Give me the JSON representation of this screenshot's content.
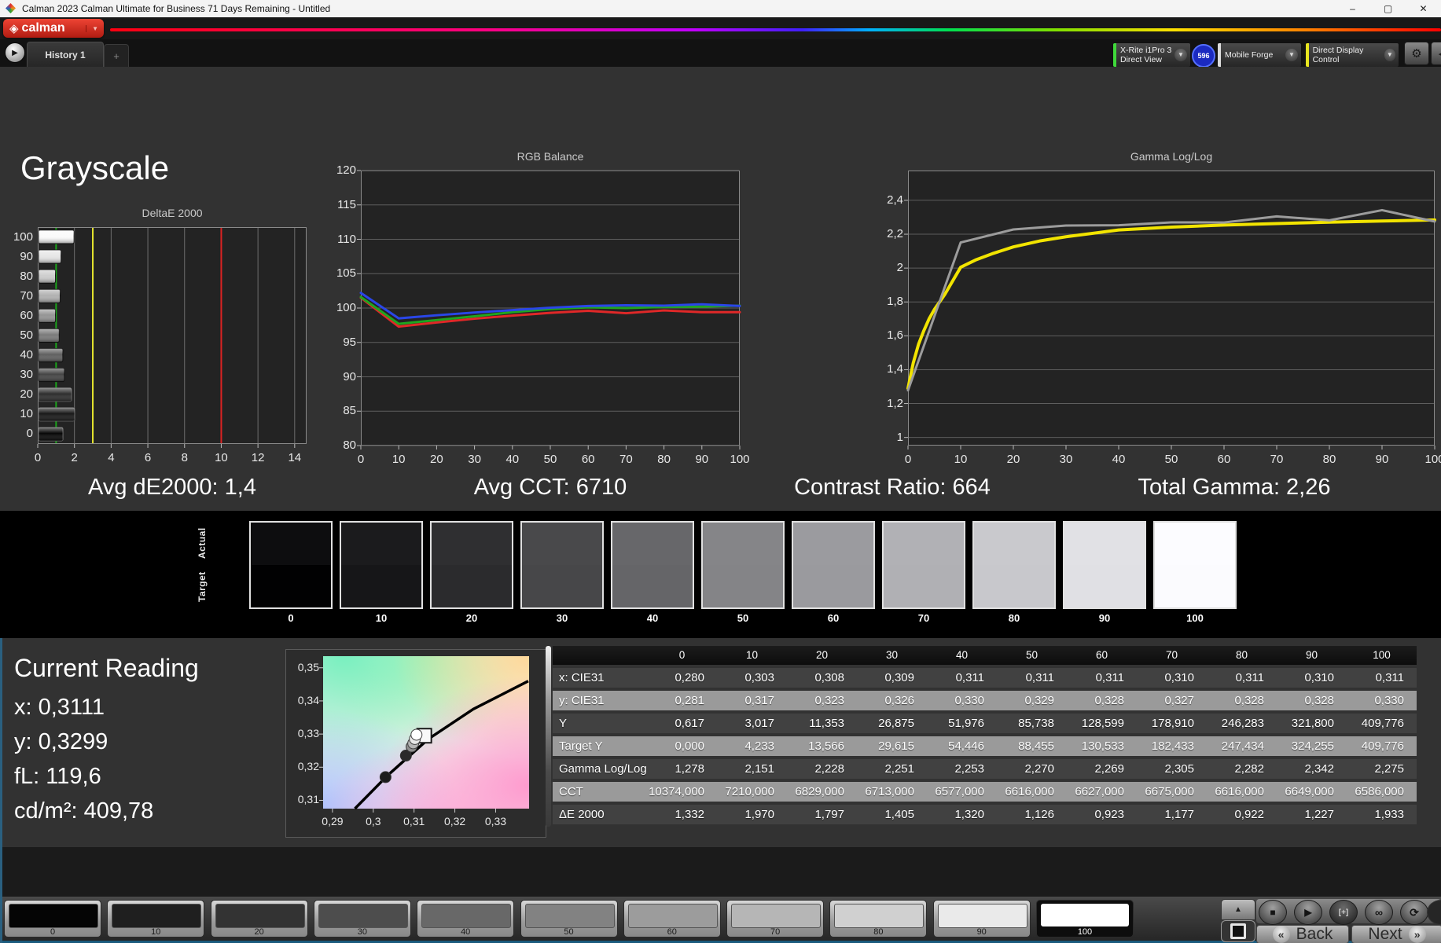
{
  "window": {
    "title": "Calman 2023 Calman Ultimate for Business 71 Days Remaining  - Untitled",
    "minimize": "–",
    "maximize": "▢",
    "close": "✕"
  },
  "brand": {
    "name": "calman",
    "dropdown_icon": "▼"
  },
  "tab_bar": {
    "scroll_icon": "▶",
    "tabs": [
      {
        "label": "History 1"
      }
    ],
    "add_label": "+"
  },
  "device_bar": {
    "meter": {
      "line1": "X-Rite i1Pro 3",
      "line2": "Direct View",
      "accent": "#3fd83a"
    },
    "badge": "596",
    "pattern_source": {
      "label": "Mobile Forge",
      "accent": "#dcdcdc"
    },
    "display_control": {
      "label": "Direct Display Control",
      "accent": "#e7e41f"
    },
    "dropdown_icon": "▼",
    "gear_icon": "⚙",
    "collapse_icon": "◀"
  },
  "page": {
    "heading": "Grayscale"
  },
  "stats": {
    "avg_de2000": "Avg dE2000: 1,4",
    "avg_cct": "Avg CCT: 6710",
    "contrast_ratio": "Contrast Ratio: 664",
    "total_gamma": "Total Gamma: 2,26"
  },
  "chart_data": [
    {
      "id": "deltae",
      "type": "bar",
      "orientation": "horizontal",
      "title": "DeltaE 2000",
      "categories": [
        "100",
        "90",
        "80",
        "70",
        "60",
        "50",
        "40",
        "30",
        "20",
        "10",
        "0"
      ],
      "values": [
        1.933,
        1.227,
        0.922,
        1.177,
        0.923,
        1.126,
        1.32,
        1.405,
        1.797,
        1.97,
        1.332
      ],
      "bar_colors": [
        "#fafafa",
        "#e6e6e6",
        "#cdcdcd",
        "#b1b1b1",
        "#959595",
        "#7a7a7a",
        "#606060",
        "#454545",
        "#2d2d2d",
        "#181818",
        "#060606"
      ],
      "xlim": [
        0,
        14.65
      ],
      "xticks": [
        0,
        2,
        4,
        6,
        8,
        10,
        12,
        14
      ],
      "xtick_labels": [
        "0",
        "2",
        "4",
        "6",
        "8",
        "10",
        "12",
        "14"
      ],
      "ref_lines": [
        {
          "x": 1,
          "color": "#1aa31a"
        },
        {
          "x": 3,
          "color": "#e6e62e"
        },
        {
          "x": 10,
          "color": "#dd2222"
        }
      ],
      "grid": true
    },
    {
      "id": "rgb_balance",
      "type": "line",
      "title": "RGB Balance",
      "x": [
        0,
        10,
        20,
        30,
        40,
        50,
        60,
        70,
        80,
        90,
        100
      ],
      "xlim": [
        0,
        100
      ],
      "xticks": [
        0,
        10,
        20,
        30,
        40,
        50,
        60,
        70,
        80,
        90,
        100
      ],
      "xtick_labels": [
        "0",
        "10",
        "20",
        "30",
        "40",
        "50",
        "60",
        "70",
        "80",
        "90",
        "100"
      ],
      "ylim": [
        80,
        120
      ],
      "yticks": [
        80,
        85,
        90,
        95,
        100,
        105,
        110,
        115,
        120
      ],
      "ytick_labels": [
        "80",
        "85",
        "90",
        "95",
        "100",
        "105",
        "110",
        "115",
        "120"
      ],
      "grid": true,
      "legend": "none",
      "series": [
        {
          "name": "red",
          "color": "#e02828",
          "width": 3,
          "values": [
            101.5,
            97.3,
            97.9,
            98.45,
            98.9,
            99.3,
            99.6,
            99.25,
            99.65,
            99.4,
            99.4
          ]
        },
        {
          "name": "green",
          "color": "#1fa51f",
          "width": 3,
          "values": [
            101.6,
            97.7,
            98.25,
            98.8,
            99.4,
            99.85,
            100.1,
            100.0,
            100.15,
            100.2,
            100.35
          ]
        },
        {
          "name": "blue",
          "color": "#2a46e8",
          "width": 3,
          "values": [
            102.2,
            98.5,
            98.95,
            99.35,
            99.7,
            100.05,
            100.3,
            100.4,
            100.35,
            100.55,
            100.3
          ]
        }
      ]
    },
    {
      "id": "gamma",
      "type": "line",
      "title": "Gamma Log/Log",
      "xlim": [
        0,
        100
      ],
      "xticks": [
        0,
        10,
        20,
        30,
        40,
        50,
        60,
        70,
        80,
        90,
        100
      ],
      "xtick_labels": [
        "0",
        "10",
        "20",
        "30",
        "40",
        "50",
        "60",
        "70",
        "80",
        "90",
        "100"
      ],
      "ylim": [
        0.952,
        2.576
      ],
      "yticks": [
        1,
        1.2,
        1.4,
        1.6,
        1.8,
        2,
        2.2,
        2.4
      ],
      "ytick_labels": [
        "1",
        "1,2",
        "1,4",
        "1,6",
        "1,8",
        "2",
        "2,2",
        "2,4"
      ],
      "grid": true,
      "legend": "none",
      "series": [
        {
          "name": "target",
          "color": "#f2e400",
          "width": 4,
          "x": [
            0,
            1,
            2,
            3,
            4,
            5,
            7,
            10,
            13,
            16,
            20,
            25,
            30,
            40,
            50,
            60,
            70,
            80,
            90,
            100
          ],
          "values": [
            1.29,
            1.44,
            1.55,
            1.63,
            1.7,
            1.755,
            1.845,
            2.005,
            2.05,
            2.085,
            2.125,
            2.16,
            2.185,
            2.225,
            2.242,
            2.254,
            2.263,
            2.271,
            2.278,
            2.284
          ]
        },
        {
          "name": "measured",
          "color": "#9c9c9c",
          "width": 3,
          "x": [
            0,
            10,
            20,
            30,
            40,
            50,
            60,
            70,
            80,
            90,
            100
          ],
          "values": [
            1.278,
            2.151,
            2.228,
            2.251,
            2.253,
            2.27,
            2.269,
            2.305,
            2.282,
            2.342,
            2.275
          ]
        }
      ]
    },
    {
      "id": "cie_detail",
      "type": "scatter",
      "title": "",
      "xlim": [
        0.2877,
        0.3382
      ],
      "ylim": [
        0.3075,
        0.3535
      ],
      "xticks": [
        0.29,
        0.3,
        0.31,
        0.32,
        0.33
      ],
      "xtick_labels": [
        "0,29",
        "0,3",
        "0,31",
        "0,32",
        "0,33"
      ],
      "yticks": [
        0.35,
        0.34,
        0.33,
        0.32,
        0.31
      ],
      "ytick_labels": [
        "0,35",
        "0,34",
        "0,33",
        "0,32",
        "0,31"
      ],
      "locus": [
        [
          0.2955,
          0.3075
        ],
        [
          0.3035,
          0.3175
        ],
        [
          0.3135,
          0.3285
        ],
        [
          0.3245,
          0.3375
        ],
        [
          0.338,
          0.346
        ]
      ],
      "points": [
        {
          "x": 0.303,
          "y": 0.317,
          "fill": "#1c1c1c"
        },
        {
          "x": 0.308,
          "y": 0.3235,
          "fill": "#2a2a2a"
        },
        {
          "x": 0.3094,
          "y": 0.3262,
          "fill": "#8f8f8f"
        },
        {
          "x": 0.3098,
          "y": 0.3272,
          "fill": "#b5b5b5"
        },
        {
          "x": 0.3102,
          "y": 0.3285,
          "fill": "#e8e8e8"
        },
        {
          "x": 0.3106,
          "y": 0.3298,
          "fill": "#ffffff"
        }
      ],
      "target_marker": {
        "x": 0.3125,
        "y": 0.3295
      }
    },
    {
      "id": "measurement_table",
      "type": "table",
      "headers": [
        "0",
        "10",
        "20",
        "30",
        "40",
        "50",
        "60",
        "70",
        "80",
        "90",
        "100"
      ],
      "rows": [
        {
          "label": "x: CIE31",
          "shade": "dark",
          "values": [
            "0,280",
            "0,303",
            "0,308",
            "0,309",
            "0,311",
            "0,311",
            "0,311",
            "0,310",
            "0,311",
            "0,310",
            "0,311"
          ]
        },
        {
          "label": "y: CIE31",
          "shade": "light",
          "values": [
            "0,281",
            "0,317",
            "0,323",
            "0,326",
            "0,330",
            "0,329",
            "0,328",
            "0,327",
            "0,328",
            "0,328",
            "0,330"
          ]
        },
        {
          "label": "Y",
          "shade": "dark",
          "values": [
            "0,617",
            "3,017",
            "11,353",
            "26,875",
            "51,976",
            "85,738",
            "128,599",
            "178,910",
            "246,283",
            "321,800",
            "409,776"
          ]
        },
        {
          "label": "Target Y",
          "shade": "light",
          "values": [
            "0,000",
            "4,233",
            "13,566",
            "29,615",
            "54,446",
            "88,455",
            "130,533",
            "182,433",
            "247,434",
            "324,255",
            "409,776"
          ]
        },
        {
          "label": "Gamma Log/Log",
          "shade": "dark",
          "values": [
            "1,278",
            "2,151",
            "2,228",
            "2,251",
            "2,253",
            "2,270",
            "2,269",
            "2,305",
            "2,282",
            "2,342",
            "2,275"
          ]
        },
        {
          "label": "CCT",
          "shade": "light",
          "values": [
            "10374,000",
            "7210,000",
            "6829,000",
            "6713,000",
            "6577,000",
            "6616,000",
            "6627,000",
            "6675,000",
            "6616,000",
            "6649,000",
            "6586,000"
          ]
        },
        {
          "label": "ΔE 2000",
          "shade": "dark",
          "values": [
            "1,332",
            "1,970",
            "1,797",
            "1,405",
            "1,320",
            "1,126",
            "0,923",
            "1,177",
            "0,922",
            "1,227",
            "1,933"
          ]
        }
      ]
    }
  ],
  "swatches": {
    "row_labels": [
      "Actual",
      "Target"
    ],
    "items": [
      {
        "label": "0",
        "actual": "#0d0d0f",
        "target": "#010102"
      },
      {
        "label": "10",
        "actual": "#1b1b1d",
        "target": "#161618"
      },
      {
        "label": "20",
        "actual": "#2f2f31",
        "target": "#2b2b2d"
      },
      {
        "label": "30",
        "actual": "#49494b",
        "target": "#474749"
      },
      {
        "label": "40",
        "actual": "#67676a",
        "target": "#656568"
      },
      {
        "label": "50",
        "actual": "#858588",
        "target": "#848487"
      },
      {
        "label": "60",
        "actual": "#9b9b9f",
        "target": "#9a9a9e"
      },
      {
        "label": "70",
        "actual": "#b1b1b5",
        "target": "#b0b0b4"
      },
      {
        "label": "80",
        "actual": "#c9c9cd",
        "target": "#c8c8cc"
      },
      {
        "label": "90",
        "actual": "#e1e1e5",
        "target": "#e0e0e4"
      },
      {
        "label": "100",
        "actual": "#fcfcff",
        "target": "#fbfbfe"
      }
    ]
  },
  "current_reading": {
    "title": "Current Reading",
    "lines": [
      "x: 0,3111",
      "y: 0,3299",
      "fL: 119,6",
      "cd/m²: 409,78"
    ]
  },
  "patch_bar": {
    "items": [
      {
        "label": "0",
        "color": "#050505",
        "selected": false
      },
      {
        "label": "10",
        "color": "#1f1f1f",
        "selected": false
      },
      {
        "label": "20",
        "color": "#333333",
        "selected": false
      },
      {
        "label": "30",
        "color": "#4d4d4d",
        "selected": false
      },
      {
        "label": "40",
        "color": "#686868",
        "selected": false
      },
      {
        "label": "50",
        "color": "#828282",
        "selected": false
      },
      {
        "label": "60",
        "color": "#9c9c9c",
        "selected": false
      },
      {
        "label": "70",
        "color": "#b6b6b6",
        "selected": false
      },
      {
        "label": "80",
        "color": "#d0d0d0",
        "selected": false
      },
      {
        "label": "90",
        "color": "#eaeaea",
        "selected": false
      },
      {
        "label": "100",
        "color": "#ffffff",
        "selected": true
      }
    ]
  },
  "transport": {
    "up_icon": "▲",
    "pattern_window_icon": "■",
    "stop_icon": "■",
    "play_icon": "▶",
    "size_icon": "[+]",
    "infinity_icon": "∞",
    "refresh_icon": "⟳",
    "back_chevron": "«",
    "back_label": "Back",
    "next_label": "Next",
    "next_chevron": "»"
  },
  "colors": {
    "accent_green": "#1aa31a",
    "accent_yellow": "#e6e62e",
    "accent_red": "#dd2222",
    "panel": "#323232",
    "plot_bg": "#232323",
    "bottom_edge": "#1a5a7d"
  }
}
